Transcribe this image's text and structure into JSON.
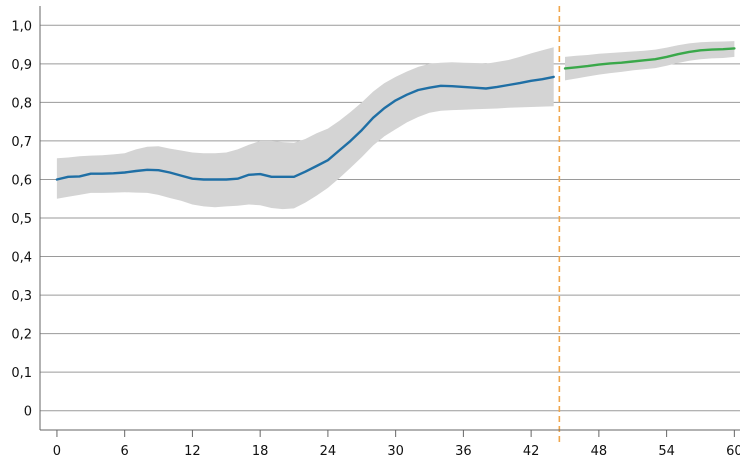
{
  "chart_data": {
    "type": "line",
    "title": "",
    "xlabel": "",
    "ylabel": "",
    "xlim": [
      -1.5,
      60.5
    ],
    "ylim": [
      -0.05,
      1.05
    ],
    "x_ticks": [
      0,
      6,
      12,
      18,
      24,
      30,
      36,
      42,
      48,
      54,
      60
    ],
    "x_tick_labels": [
      "0",
      "6",
      "12",
      "18",
      "24",
      "30",
      "36",
      "42",
      "48",
      "54",
      "60"
    ],
    "y_ticks": [
      0,
      0.1,
      0.2,
      0.3,
      0.4,
      0.5,
      0.6,
      0.7,
      0.8,
      0.9,
      1.0
    ],
    "y_tick_labels": [
      "0",
      "0,1",
      "0,2",
      "0,3",
      "0,4",
      "0,5",
      "0,6",
      "0,7",
      "0,8",
      "0,9",
      "1,0"
    ],
    "grid": "horizontal",
    "divider_x": 44.5,
    "colors": {
      "history": "#1f6fa5",
      "forecast": "#3aa84a",
      "band": "#d4d4d4",
      "divider": "#f0a64c",
      "grid": "#9a9a9a",
      "axis": "#666666"
    },
    "series": [
      {
        "x": [
          0,
          1,
          2,
          3,
          4,
          5,
          6,
          7,
          8,
          9,
          10,
          11,
          12,
          13,
          14,
          15,
          16,
          17,
          18,
          19,
          20,
          21,
          22,
          23,
          24,
          25,
          26,
          27,
          28,
          29,
          30,
          31,
          32,
          33,
          34,
          35,
          36,
          37,
          38,
          39,
          40,
          41,
          42,
          43,
          44
        ],
        "values": [
          0.6,
          0.607,
          0.608,
          0.615,
          0.615,
          0.616,
          0.618,
          0.622,
          0.625,
          0.624,
          0.618,
          0.61,
          0.602,
          0.6,
          0.6,
          0.6,
          0.602,
          0.612,
          0.614,
          0.607,
          0.607,
          0.607,
          0.62,
          0.635,
          0.65,
          0.675,
          0.7,
          0.728,
          0.76,
          0.785,
          0.805,
          0.82,
          0.832,
          0.838,
          0.843,
          0.842,
          0.84,
          0.838,
          0.836,
          0.84,
          0.845,
          0.85,
          0.856,
          0.86,
          0.866
        ],
        "lower": [
          0.55,
          0.555,
          0.56,
          0.565,
          0.565,
          0.566,
          0.567,
          0.566,
          0.565,
          0.56,
          0.552,
          0.545,
          0.535,
          0.53,
          0.528,
          0.53,
          0.532,
          0.535,
          0.533,
          0.526,
          0.523,
          0.525,
          0.54,
          0.558,
          0.578,
          0.603,
          0.63,
          0.658,
          0.688,
          0.712,
          0.73,
          0.748,
          0.762,
          0.773,
          0.778,
          0.78,
          0.781,
          0.782,
          0.783,
          0.784,
          0.786,
          0.787,
          0.788,
          0.789,
          0.79
        ],
        "upper": [
          0.655,
          0.657,
          0.66,
          0.662,
          0.663,
          0.665,
          0.668,
          0.678,
          0.685,
          0.686,
          0.68,
          0.675,
          0.67,
          0.668,
          0.668,
          0.67,
          0.678,
          0.69,
          0.7,
          0.7,
          0.697,
          0.695,
          0.705,
          0.72,
          0.732,
          0.752,
          0.775,
          0.8,
          0.828,
          0.85,
          0.866,
          0.88,
          0.892,
          0.9,
          0.903,
          0.904,
          0.903,
          0.902,
          0.9,
          0.905,
          0.91,
          0.918,
          0.927,
          0.935,
          0.943
        ]
      },
      {
        "x": [
          45,
          46,
          47,
          48,
          49,
          50,
          51,
          52,
          53,
          54,
          55,
          56,
          57,
          58,
          59,
          60
        ],
        "values": [
          0.888,
          0.891,
          0.894,
          0.898,
          0.901,
          0.903,
          0.906,
          0.909,
          0.912,
          0.918,
          0.925,
          0.931,
          0.935,
          0.937,
          0.938,
          0.94
        ],
        "lower": [
          0.857,
          0.862,
          0.867,
          0.872,
          0.876,
          0.879,
          0.883,
          0.886,
          0.889,
          0.895,
          0.902,
          0.908,
          0.912,
          0.914,
          0.915,
          0.918
        ],
        "upper": [
          0.918,
          0.921,
          0.923,
          0.926,
          0.928,
          0.93,
          0.932,
          0.934,
          0.937,
          0.942,
          0.948,
          0.953,
          0.956,
          0.957,
          0.958,
          0.959
        ]
      }
    ]
  }
}
